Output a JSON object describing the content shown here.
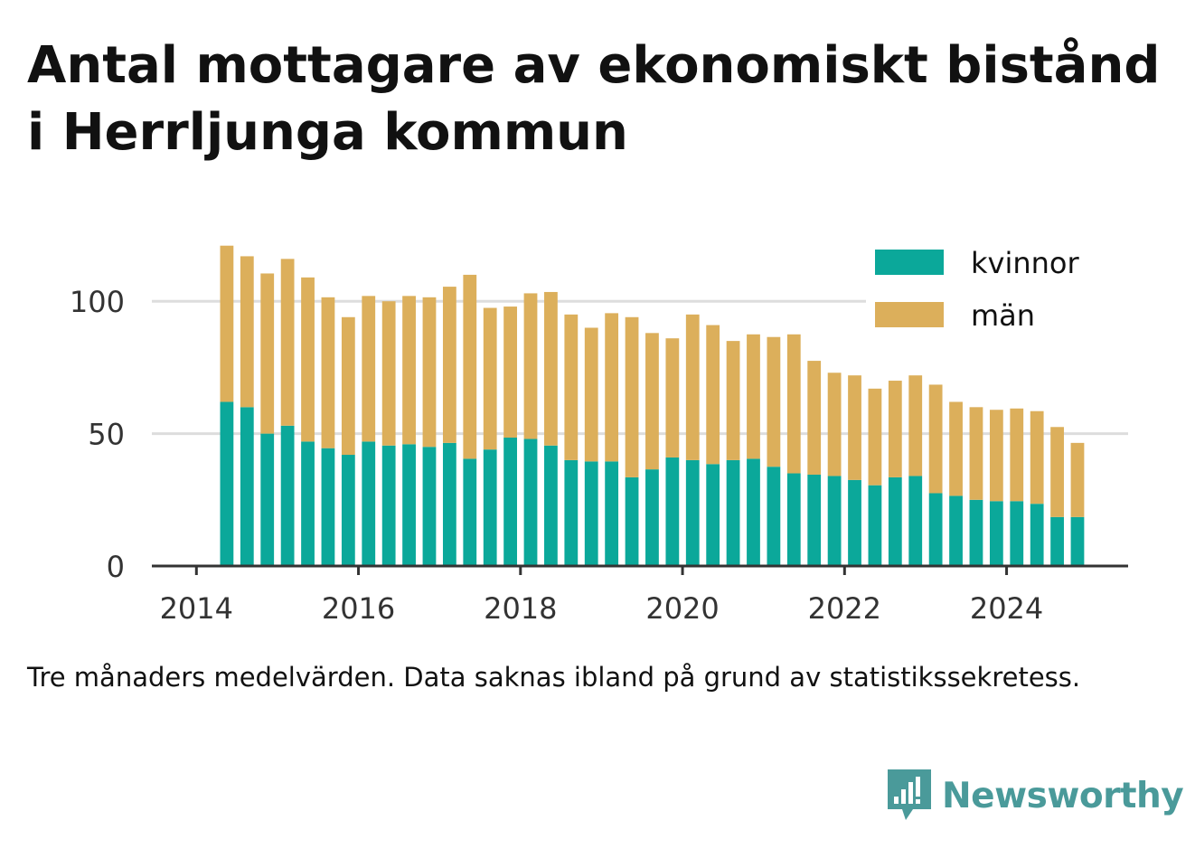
{
  "title_lines": [
    "Antal mottagare av ekonomiskt bistånd",
    "i Herrljunga kommun"
  ],
  "caption": "Tre månaders medelvärden. Data saknas ibland på grund av statistikssekretess.",
  "brand": "Newsworthy",
  "colors": {
    "kvinnor": "#0ba89a",
    "man": "#dcaf5b",
    "grid": "#dddddd",
    "axis": "#333333",
    "text": "#333333",
    "brand": "#4a9a9a"
  },
  "chart_data": {
    "type": "bar",
    "stacked": true,
    "x_unit": "year",
    "x": [
      2014.375,
      2014.625,
      2014.875,
      2015.125,
      2015.375,
      2015.625,
      2015.875,
      2016.125,
      2016.375,
      2016.625,
      2016.875,
      2017.125,
      2017.375,
      2017.625,
      2017.875,
      2018.125,
      2018.375,
      2018.625,
      2018.875,
      2019.125,
      2019.375,
      2019.625,
      2019.875,
      2020.125,
      2020.375,
      2020.625,
      2020.875,
      2021.125,
      2021.375,
      2021.625,
      2021.875,
      2022.125,
      2022.375,
      2022.625,
      2022.875,
      2023.125,
      2023.375,
      2023.625,
      2023.875,
      2024.125,
      2024.375,
      2024.625,
      2024.875
    ],
    "series": [
      {
        "name": "kvinnor",
        "values": [
          62,
          60,
          50,
          53,
          47,
          44.5,
          42,
          47,
          45.5,
          46,
          45,
          46.5,
          40.5,
          44,
          48.5,
          48,
          45.5,
          40,
          39.5,
          39.5,
          33.5,
          36.5,
          41,
          40,
          38.5,
          40,
          40.5,
          37.5,
          35,
          34.5,
          34,
          32.5,
          30.5,
          33.5,
          34,
          27.5,
          26.5,
          25,
          24.5,
          24.5,
          23.5,
          18.5,
          18.5
        ]
      },
      {
        "name": "män",
        "values": [
          59,
          57,
          60.5,
          63,
          62,
          57,
          52,
          55,
          54.5,
          56,
          56.5,
          59,
          69.5,
          53.5,
          49.5,
          55,
          58,
          55,
          50.5,
          56,
          60.5,
          51.5,
          45,
          55,
          52.5,
          45,
          47,
          49,
          52.5,
          43,
          39,
          39.5,
          36.5,
          36.5,
          38,
          41,
          35.5,
          35,
          34.5,
          35,
          35,
          34,
          28
        ]
      }
    ],
    "xlim": [
      2013.45,
      2025.5
    ],
    "ylim": [
      0,
      125
    ],
    "xticks": [
      2014,
      2016,
      2018,
      2020,
      2022,
      2024
    ],
    "yticks": [
      0,
      50,
      100
    ],
    "grid": "horizontal",
    "legend_position": "top-right"
  }
}
